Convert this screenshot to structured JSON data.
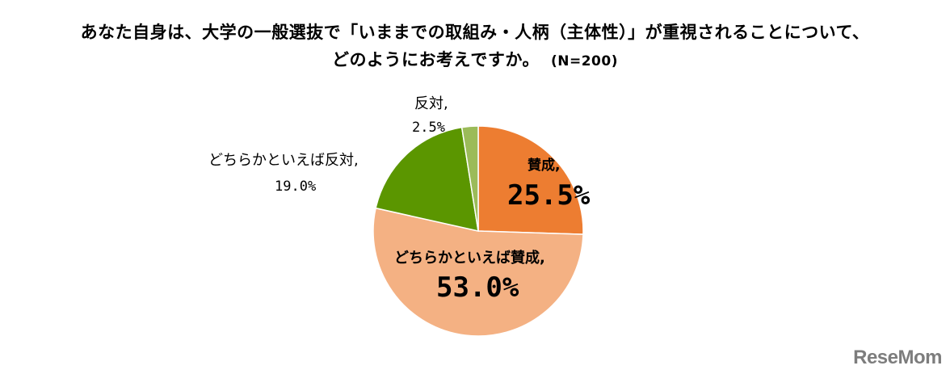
{
  "chart_data": {
    "type": "pie",
    "title_line_1": "あなた自身は、大学の一般選抜で「いままでの取組み・人柄（主体性）」が重視されることについて、",
    "title_line_2": "どのようにお考えですか。",
    "n_note": "(N=200)",
    "slices": [
      {
        "label": "賛成,",
        "value": 25.5,
        "value_text": "25.5%",
        "color": "#ED7D31"
      },
      {
        "label": "どちらかといえば賛成,",
        "value": 53.0,
        "value_text": "53.0%",
        "color": "#F4B183"
      },
      {
        "label": "どちらかといえば反対,",
        "value": 19.0,
        "value_text": "19.0%",
        "color": "#5B9600"
      },
      {
        "label": "反対,",
        "value": 2.5,
        "value_text": "2.5%",
        "color": "#9BBB59"
      }
    ]
  },
  "watermark": "ReseMom"
}
